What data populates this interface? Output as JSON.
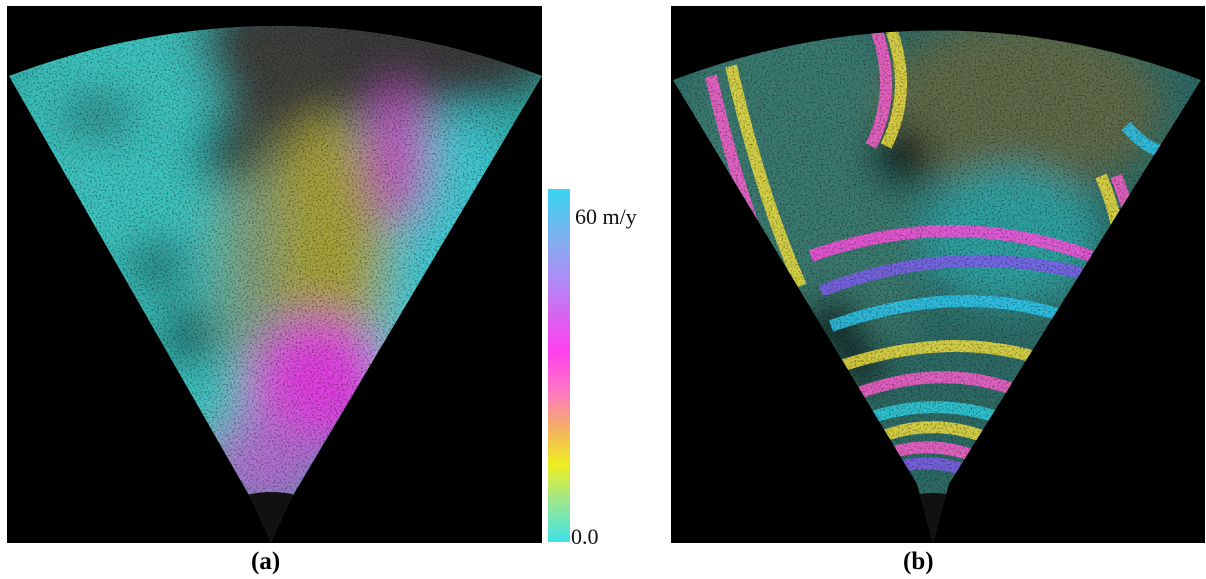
{
  "panels": [
    {
      "caption": "(a)",
      "content": "sector-shaped radar interferogram, velocity-coded colour"
    },
    {
      "caption": "(b)",
      "content": "sector-shaped radar interferogram, wrapped-phase fringes"
    }
  ],
  "colorbar": {
    "max_label": "60 m/y",
    "min_label": "0.0",
    "colors": [
      "#38d6f0",
      "#b08af5",
      "#ff40ee",
      "#f4b060",
      "#eeee20",
      "#40e2e8"
    ]
  }
}
